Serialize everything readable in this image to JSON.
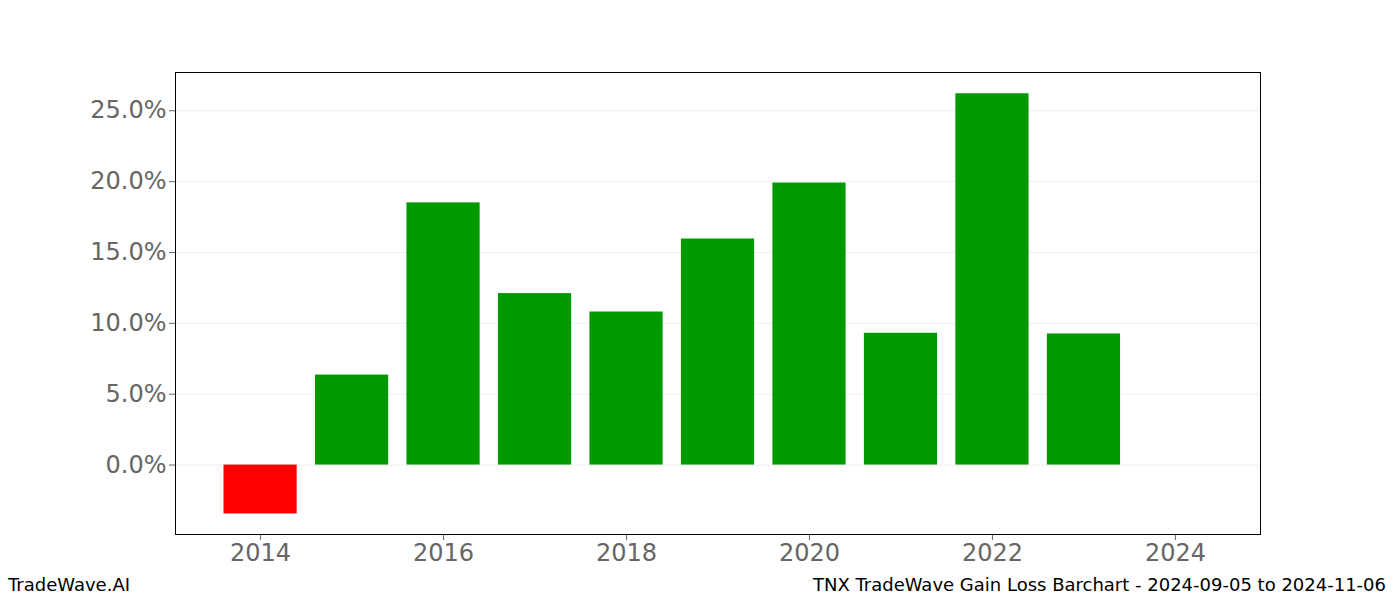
{
  "chart_data": {
    "type": "bar",
    "title": "TNX TradeWave Gain Loss Barchart - 2024-09-05 to 2024-11-06",
    "caption": "TradeWave.AI",
    "x": [
      2014,
      2015,
      2016,
      2017,
      2018,
      2019,
      2020,
      2021,
      2022,
      2023
    ],
    "values": [
      -3.45,
      6.35,
      18.5,
      12.1,
      10.8,
      15.95,
      19.9,
      9.3,
      26.2,
      9.25
    ],
    "colors": [
      "#ff0000",
      "#009900",
      "#009900",
      "#009900",
      "#009900",
      "#009900",
      "#009900",
      "#009900",
      "#009900",
      "#009900"
    ],
    "xlim": [
      2013.07,
      2024.93
    ],
    "xticks": [
      2014,
      2016,
      2018,
      2020,
      2022,
      2024
    ],
    "ylim": [
      -4.9,
      27.7
    ],
    "yticks": [
      {
        "value": 0,
        "label": "0.0%"
      },
      {
        "value": 5,
        "label": "5.0%"
      },
      {
        "value": 10,
        "label": "10.0%"
      },
      {
        "value": 15,
        "label": "15.0%"
      },
      {
        "value": 20,
        "label": "20.0%"
      },
      {
        "value": 25,
        "label": "25.0%"
      }
    ],
    "grid": true
  }
}
